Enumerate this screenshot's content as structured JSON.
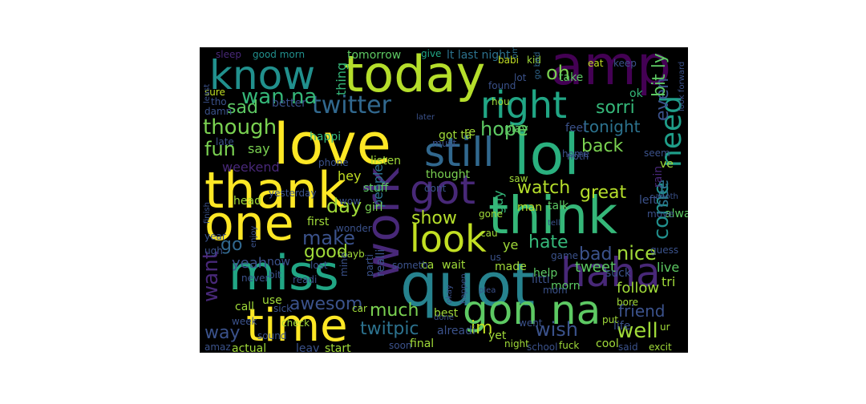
{
  "wordcloud": {
    "background": "#000000",
    "colormap": [
      "#440154",
      "#3b528b",
      "#21908d",
      "#5dc963",
      "#fde725"
    ],
    "words": [
      {
        "text": "amp",
        "color": "#440154"
      },
      {
        "text": "today",
        "color": "#b5de2b"
      },
      {
        "text": "know",
        "color": "#21908d"
      },
      {
        "text": "love",
        "color": "#fde725"
      },
      {
        "text": "lol",
        "color": "#2ab07f"
      },
      {
        "text": "still",
        "color": "#31688e"
      },
      {
        "text": "thank",
        "color": "#fde725"
      },
      {
        "text": "one",
        "color": "#fde725"
      },
      {
        "text": "work",
        "color": "#482878"
      },
      {
        "text": "think",
        "color": "#35b779"
      },
      {
        "text": "quot",
        "color": "#26828e"
      },
      {
        "text": "miss",
        "color": "#21a685"
      },
      {
        "text": "time",
        "color": "#fde725"
      },
      {
        "text": "gon na",
        "color": "#5dc963"
      },
      {
        "text": "haha",
        "color": "#482878"
      },
      {
        "text": "got",
        "color": "#482878"
      },
      {
        "text": "look",
        "color": "#c2df23"
      },
      {
        "text": "right",
        "color": "#21a685"
      },
      {
        "text": "twitter",
        "color": "#31688e"
      },
      {
        "text": "wan na",
        "color": "#35b779"
      },
      {
        "text": "need",
        "color": "#1f9e89"
      },
      {
        "text": "even",
        "color": "#3b528b"
      },
      {
        "text": "bit ly",
        "color": "#5dc963"
      },
      {
        "text": "sorri",
        "color": "#35b779"
      },
      {
        "text": "though",
        "color": "#7ad151"
      },
      {
        "text": "sad",
        "color": "#5dc963"
      },
      {
        "text": "hope",
        "color": "#5dc963"
      },
      {
        "text": "tonight",
        "color": "#2c728e"
      },
      {
        "text": "back",
        "color": "#7ad151"
      },
      {
        "text": "fun",
        "color": "#7ad151"
      },
      {
        "text": "watch",
        "color": "#b5de2b"
      },
      {
        "text": "day",
        "color": "#a0da39"
      },
      {
        "text": "make",
        "color": "#3b528b"
      },
      {
        "text": "good",
        "color": "#a0da39"
      },
      {
        "text": "show",
        "color": "#b5de2b"
      },
      {
        "text": "hate",
        "color": "#35b779"
      },
      {
        "text": "bad",
        "color": "#3b528b"
      },
      {
        "text": "come",
        "color": "#21908d"
      },
      {
        "text": "see",
        "color": "#2c728e"
      },
      {
        "text": "great",
        "color": "#b5de2b"
      },
      {
        "text": "nice",
        "color": "#a0da39"
      },
      {
        "text": "tweet",
        "color": "#5dc963"
      },
      {
        "text": "want",
        "color": "#482878"
      },
      {
        "text": "go",
        "color": "#31688e"
      },
      {
        "text": "yeah",
        "color": "#3b528b"
      },
      {
        "text": "awesom",
        "color": "#3b528b"
      },
      {
        "text": "much",
        "color": "#7ad151"
      },
      {
        "text": "twitpic",
        "color": "#2c728e"
      },
      {
        "text": "im",
        "color": "#c2df23"
      },
      {
        "text": "wish",
        "color": "#3b528b"
      },
      {
        "text": "well",
        "color": "#a0da39"
      },
      {
        "text": "friend",
        "color": "#3b528b"
      },
      {
        "text": "way",
        "color": "#3b528b"
      },
      {
        "text": "oh",
        "color": "#7ad151"
      },
      {
        "text": "lt last night",
        "color": "#2c728e"
      },
      {
        "text": "tomorrow",
        "color": "#5dc963"
      },
      {
        "text": "sleep",
        "color": "#482878"
      },
      {
        "text": "good morn",
        "color": "#21908d"
      },
      {
        "text": "give",
        "color": "#21a685"
      },
      {
        "text": "kid",
        "color": "#a0da39"
      },
      {
        "text": "omg",
        "color": "#2c728e"
      },
      {
        "text": "lot",
        "color": "#3b528b"
      },
      {
        "text": "go bed",
        "color": "#31688e"
      },
      {
        "text": "thing",
        "color": "#35b779"
      },
      {
        "text": "babi",
        "color": "#c2df23"
      },
      {
        "text": "better",
        "color": "#3b528b"
      },
      {
        "text": "sure",
        "color": "#c2df23"
      },
      {
        "text": "tho",
        "color": "#3b528b"
      },
      {
        "text": "damn",
        "color": "#3b528b"
      },
      {
        "text": "late",
        "color": "#3b528b"
      },
      {
        "text": "happi",
        "color": "#35b779"
      },
      {
        "text": "say",
        "color": "#7ad151"
      },
      {
        "text": "weekend",
        "color": "#482878"
      },
      {
        "text": "hey",
        "color": "#c2df23"
      },
      {
        "text": "people",
        "color": "#2c728e"
      },
      {
        "text": "thought",
        "color": "#7ad151"
      },
      {
        "text": "girl",
        "color": "#7ad151"
      },
      {
        "text": "head",
        "color": "#a0da39"
      },
      {
        "text": "yesterday",
        "color": "#3b528b"
      },
      {
        "text": "first",
        "color": "#a0da39"
      },
      {
        "text": "stuff",
        "color": "#5dc963"
      },
      {
        "text": "guy",
        "color": "#35b779"
      },
      {
        "text": "man",
        "color": "#b5de2b"
      },
      {
        "text": "talk",
        "color": "#5dc963"
      },
      {
        "text": "play",
        "color": "#5dc963"
      },
      {
        "text": "feel",
        "color": "#3b528b"
      },
      {
        "text": "home",
        "color": "#3b528b"
      },
      {
        "text": "ok",
        "color": "#35b779"
      },
      {
        "text": "keep",
        "color": "#3b528b"
      },
      {
        "text": "eat",
        "color": "#c2df23"
      },
      {
        "text": "take",
        "color": "#5dc963"
      },
      {
        "text": "found",
        "color": "#3b528b"
      },
      {
        "text": "look forward",
        "color": "#3b528b"
      },
      {
        "text": "seem",
        "color": "#3b528b"
      },
      {
        "text": "rain",
        "color": "#482878"
      },
      {
        "text": "ve",
        "color": "#a0da39"
      },
      {
        "text": "alway",
        "color": "#5dc963"
      },
      {
        "text": "left",
        "color": "#3b528b"
      },
      {
        "text": "anoth",
        "color": "#3b528b"
      },
      {
        "text": "move",
        "color": "#3b528b"
      },
      {
        "text": "guess",
        "color": "#3b528b"
      },
      {
        "text": "live",
        "color": "#5dc963"
      },
      {
        "text": "tri",
        "color": "#a0da39"
      },
      {
        "text": "follow",
        "color": "#a0da39"
      },
      {
        "text": "bore",
        "color": "#a0da39"
      },
      {
        "text": "life",
        "color": "#3b528b"
      },
      {
        "text": "ur",
        "color": "#a0da39"
      },
      {
        "text": "put",
        "color": "#a0da39"
      },
      {
        "text": "cool",
        "color": "#a0da39"
      },
      {
        "text": "said",
        "color": "#3b528b"
      },
      {
        "text": "excit",
        "color": "#a0da39"
      },
      {
        "text": "suck",
        "color": "#3b528b"
      },
      {
        "text": "morn",
        "color": "#5dc963"
      },
      {
        "text": "went",
        "color": "#3b528b"
      },
      {
        "text": "littl",
        "color": "#3b528b"
      },
      {
        "text": "help",
        "color": "#5dc963"
      },
      {
        "text": "mom",
        "color": "#3b528b"
      },
      {
        "text": "game",
        "color": "#3b528b"
      },
      {
        "text": "made",
        "color": "#a0da39"
      },
      {
        "text": "ye",
        "color": "#a0da39"
      },
      {
        "text": "ca",
        "color": "#a0da39"
      },
      {
        "text": "wait",
        "color": "#a0da39"
      },
      {
        "text": "us",
        "color": "#3b528b"
      },
      {
        "text": "happen",
        "color": "#3b528b"
      },
      {
        "text": "plea",
        "color": "#3b528b"
      },
      {
        "text": "best",
        "color": "#a0da39"
      },
      {
        "text": "yet",
        "color": "#a0da39"
      },
      {
        "text": "night",
        "color": "#a0da39"
      },
      {
        "text": "school",
        "color": "#3b528b"
      },
      {
        "text": "fuck",
        "color": "#a0da39"
      },
      {
        "text": "final",
        "color": "#a0da39"
      },
      {
        "text": "alreadi",
        "color": "#3b528b"
      },
      {
        "text": "soon",
        "color": "#3b528b"
      },
      {
        "text": "start",
        "color": "#a0da39"
      },
      {
        "text": "leav",
        "color": "#3b528b"
      },
      {
        "text": "actual",
        "color": "#a0da39"
      },
      {
        "text": "amaz",
        "color": "#3b528b"
      },
      {
        "text": "week",
        "color": "#3b528b"
      },
      {
        "text": "sound",
        "color": "#3b528b"
      },
      {
        "text": "check",
        "color": "#a0da39"
      },
      {
        "text": "sick",
        "color": "#3b528b"
      },
      {
        "text": "car",
        "color": "#a0da39"
      },
      {
        "text": "call",
        "color": "#a0da39"
      },
      {
        "text": "use",
        "color": "#a0da39"
      },
      {
        "text": "year",
        "color": "#3b528b"
      },
      {
        "text": "ugh",
        "color": "#3b528b"
      },
      {
        "text": "never",
        "color": "#3b528b"
      },
      {
        "text": "bit",
        "color": "#3b528b"
      },
      {
        "text": "now",
        "color": "#3b528b"
      },
      {
        "text": "readi",
        "color": "#3b528b"
      },
      {
        "text": "lost",
        "color": "#3b528b"
      },
      {
        "text": "mayb",
        "color": "#a0da39"
      },
      {
        "text": "realli",
        "color": "#3b528b"
      },
      {
        "text": "parti",
        "color": "#3b528b"
      },
      {
        "text": "someth",
        "color": "#3b528b"
      },
      {
        "text": "wonder",
        "color": "#3b528b"
      },
      {
        "text": "mine",
        "color": "#3b528b"
      },
      {
        "text": "listen",
        "color": "#a0da39"
      },
      {
        "text": "phone",
        "color": "#3b528b"
      },
      {
        "text": "dont",
        "color": "#3b528b"
      },
      {
        "text": "saw",
        "color": "#a0da39"
      },
      {
        "text": "hou",
        "color": "#a0da39"
      },
      {
        "text": "got ta",
        "color": "#a0da39"
      },
      {
        "text": "re",
        "color": "#a0da39"
      },
      {
        "text": "later",
        "color": "#3b528b"
      },
      {
        "text": "must",
        "color": "#3b528b"
      },
      {
        "text": "gone",
        "color": "#a0da39"
      },
      {
        "text": "cau",
        "color": "#a0da39"
      },
      {
        "text": "noth",
        "color": "#3b528b"
      },
      {
        "text": "finish",
        "color": "#3b528b"
      },
      {
        "text": "least",
        "color": "#3b528b"
      },
      {
        "text": "enjoy",
        "color": "#3b528b"
      },
      {
        "text": "wow",
        "color": "#3b528b"
      },
      {
        "text": "okay",
        "color": "#3b528b"
      },
      {
        "text": "done",
        "color": "#3b528b"
      },
      {
        "text": "tell",
        "color": "#3b528b"
      }
    ]
  }
}
